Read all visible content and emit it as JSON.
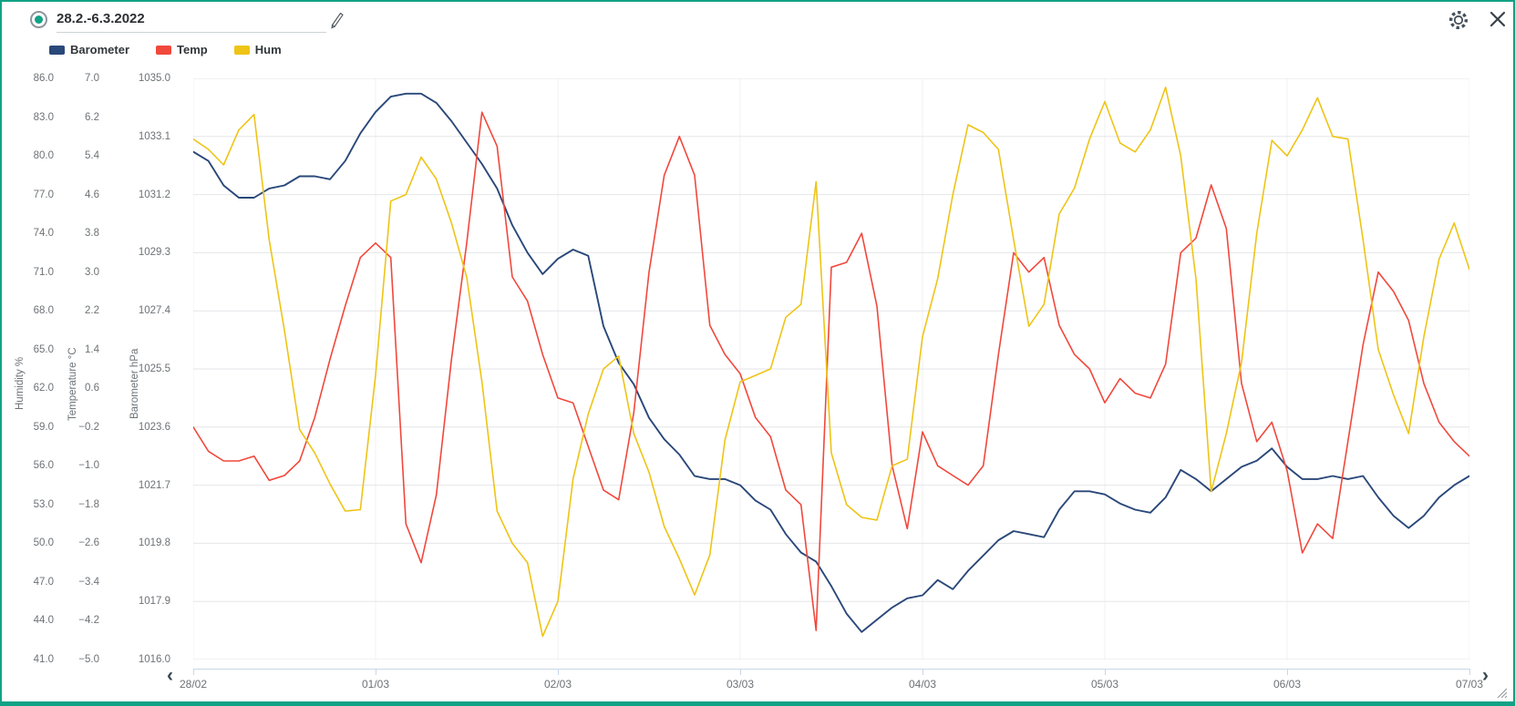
{
  "window": {
    "title_value": "28.2.-6.3.2022",
    "accent_color": "#12a285"
  },
  "legend": [
    {
      "label": "Barometer",
      "color": "#2a4879"
    },
    {
      "label": "Temp",
      "color": "#f1483c"
    },
    {
      "label": "Hum",
      "color": "#eec416"
    }
  ],
  "axes": {
    "humidity": {
      "title": "Humidity %",
      "ticks": [
        "86.0",
        "83.0",
        "80.0",
        "77.0",
        "74.0",
        "71.0",
        "68.0",
        "65.0",
        "62.0",
        "59.0",
        "56.0",
        "53.0",
        "50.0",
        "47.0",
        "44.0",
        "41.0"
      ]
    },
    "temperature": {
      "title": "Temperature °C",
      "ticks": [
        "7.0",
        "6.2",
        "5.4",
        "4.6",
        "3.8",
        "3.0",
        "2.2",
        "1.4",
        "0.6",
        "−0.2",
        "−1.0",
        "−1.8",
        "−2.6",
        "−3.4",
        "−4.2",
        "−5.0"
      ]
    },
    "barometer": {
      "title": "Barometer hPa",
      "ticks": [
        "1035.0",
        "1033.1",
        "1031.2",
        "1029.3",
        "1027.4",
        "1025.5",
        "1023.6",
        "1021.7",
        "1019.8",
        "1017.9",
        "1016.0"
      ]
    },
    "x": {
      "labels": [
        "28/02",
        "01/03",
        "02/03",
        "03/03",
        "04/03",
        "05/03",
        "06/03",
        "07/03"
      ]
    }
  },
  "nav": {
    "prev": "‹",
    "next": "›"
  },
  "chart_data": {
    "type": "line",
    "title": "28.2.-6.3.2022",
    "x_unit": "hours since 28/02 00:00",
    "x_hours": [
      0,
      2,
      4,
      6,
      8,
      10,
      12,
      14,
      16,
      18,
      20,
      22,
      24,
      26,
      28,
      30,
      32,
      34,
      36,
      38,
      40,
      42,
      44,
      46,
      48,
      50,
      52,
      54,
      56,
      58,
      60,
      62,
      64,
      66,
      68,
      70,
      72,
      74,
      76,
      78,
      80,
      82,
      84,
      86,
      88,
      90,
      92,
      94,
      96,
      98,
      100,
      102,
      104,
      106,
      108,
      110,
      112,
      114,
      116,
      118,
      120,
      122,
      124,
      126,
      128,
      130,
      132,
      134,
      136,
      138,
      140,
      142,
      144,
      146,
      148,
      150,
      152,
      154,
      156,
      158,
      160,
      162,
      164,
      166,
      168
    ],
    "x_tick_labels": [
      "28/02",
      "01/03",
      "02/03",
      "03/03",
      "04/03",
      "05/03",
      "06/03",
      "07/03"
    ],
    "x_tick_hours": [
      0,
      24,
      48,
      72,
      96,
      120,
      144,
      168
    ],
    "grid": true,
    "legend_position": "top-left",
    "series": [
      {
        "name": "Barometer",
        "unit": "hPa",
        "color": "#2a4879",
        "axis_range": [
          1016.0,
          1035.0
        ],
        "values": [
          1032.6,
          1032.3,
          1031.5,
          1031.1,
          1031.1,
          1031.4,
          1031.5,
          1031.8,
          1031.8,
          1031.7,
          1032.3,
          1033.2,
          1033.9,
          1034.4,
          1034.5,
          1034.5,
          1034.2,
          1033.6,
          1032.9,
          1032.2,
          1031.4,
          1030.2,
          1029.3,
          1028.6,
          1029.1,
          1029.4,
          1029.2,
          1026.9,
          1025.7,
          1025.0,
          1023.9,
          1023.2,
          1022.7,
          1022.0,
          1021.9,
          1021.9,
          1021.7,
          1021.2,
          1020.9,
          1020.1,
          1019.5,
          1019.2,
          1018.4,
          1017.5,
          1016.9,
          1017.3,
          1017.7,
          1018.0,
          1018.1,
          1018.6,
          1018.3,
          1018.9,
          1019.4,
          1019.9,
          1020.2,
          1020.1,
          1020.0,
          1020.9,
          1021.5,
          1021.5,
          1021.4,
          1021.1,
          1020.9,
          1020.8,
          1021.3,
          1022.2,
          1021.9,
          1021.5,
          1021.9,
          1022.3,
          1022.5,
          1022.9,
          1022.3,
          1021.9,
          1021.9,
          1022.0,
          1021.9,
          1022.0,
          1021.3,
          1020.7,
          1020.3,
          1020.7,
          1021.3,
          1021.7,
          1022.0
        ]
      },
      {
        "name": "Temp",
        "unit": "°C",
        "color": "#f1483c",
        "axis_range": [
          -5.0,
          7.0
        ],
        "values": [
          -0.2,
          -0.7,
          -0.9,
          -0.9,
          -0.8,
          -1.3,
          -1.2,
          -0.9,
          0.0,
          1.2,
          2.3,
          3.3,
          3.6,
          3.3,
          -2.2,
          -3.0,
          -1.6,
          1.2,
          3.6,
          6.3,
          5.6,
          2.9,
          2.4,
          1.3,
          0.4,
          0.3,
          -0.6,
          -1.5,
          -1.7,
          0.1,
          3.0,
          5.0,
          5.8,
          5.0,
          1.9,
          1.3,
          0.9,
          0.0,
          -0.4,
          -1.5,
          -1.8,
          -4.4,
          3.1,
          3.2,
          3.8,
          2.3,
          -1.0,
          -2.3,
          -0.3,
          -1.0,
          -1.2,
          -1.4,
          -1.0,
          1.3,
          3.4,
          3.0,
          3.3,
          1.9,
          1.3,
          1.0,
          0.3,
          0.8,
          0.5,
          0.4,
          1.1,
          3.4,
          3.7,
          4.8,
          3.9,
          0.7,
          -0.5,
          -0.1,
          -1.1,
          -2.8,
          -2.2,
          -2.5,
          -0.5,
          1.5,
          3.0,
          2.6,
          2.0,
          0.7,
          -0.1,
          -0.5,
          -0.8
        ]
      },
      {
        "name": "Hum",
        "unit": "%",
        "color": "#eec416",
        "axis_range": [
          41.0,
          86.0
        ],
        "values": [
          81.3,
          80.5,
          79.3,
          82.0,
          83.2,
          73.5,
          66.5,
          58.8,
          57.0,
          54.6,
          52.5,
          52.6,
          63.0,
          76.5,
          77.0,
          79.9,
          78.2,
          74.8,
          70.6,
          62.5,
          52.5,
          50.0,
          48.5,
          42.8,
          45.5,
          55.0,
          60.0,
          63.5,
          64.5,
          58.5,
          55.5,
          51.3,
          48.8,
          46.0,
          49.1,
          58.0,
          62.5,
          63.0,
          63.5,
          67.5,
          68.5,
          78.0,
          57.0,
          53.0,
          52.0,
          51.8,
          56.0,
          56.5,
          66.0,
          70.5,
          77.0,
          82.4,
          81.8,
          80.5,
          73.5,
          66.8,
          68.5,
          75.5,
          77.5,
          81.3,
          84.2,
          81.0,
          80.3,
          82.0,
          85.3,
          80.0,
          70.5,
          54.0,
          58.5,
          64.0,
          74.0,
          81.2,
          80.0,
          82.0,
          84.5,
          81.5,
          81.3,
          73.5,
          65.0,
          61.5,
          58.5,
          66.0,
          72.0,
          74.8,
          71.2
        ]
      }
    ]
  }
}
